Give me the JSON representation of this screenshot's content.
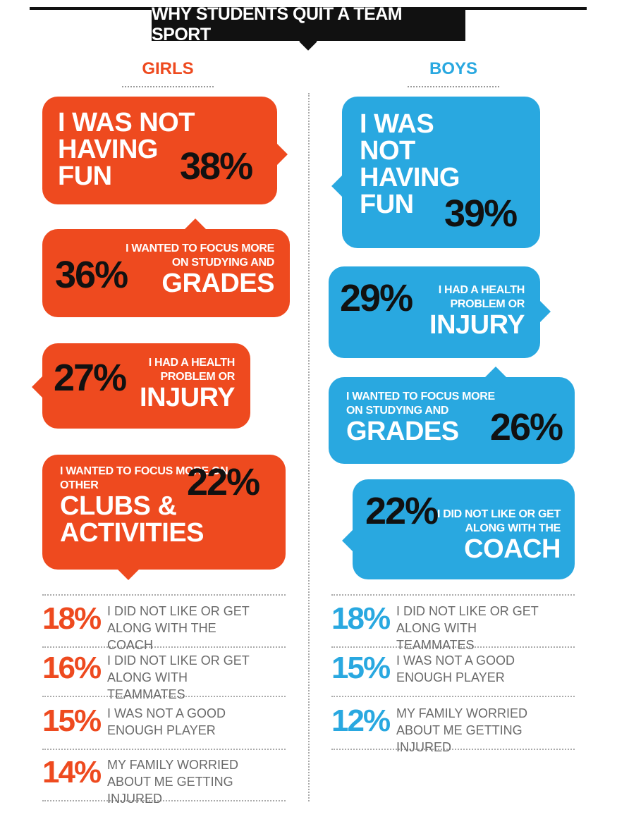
{
  "title": "WHY STUDENTS QUIT A TEAM SPORT",
  "girls": {
    "heading": "GIRLS",
    "bubbles": [
      {
        "big": "I WAS NOT HAVING FUN",
        "pct": "38%"
      },
      {
        "small": "I WANTED TO FOCUS MORE ON STUDYING AND",
        "big": "GRADES",
        "pct": "36%"
      },
      {
        "small": "I HAD A HEALTH PROBLEM OR",
        "big": "INJURY",
        "pct": "27%"
      },
      {
        "small": "I WANTED TO FOCUS MORE ON OTHER",
        "big": "CLUBS & ACTIVITIES",
        "pct": "22%"
      }
    ],
    "list": [
      {
        "pct": "18%",
        "text": "I DID NOT LIKE OR GET ALONG WITH THE COACH"
      },
      {
        "pct": "16%",
        "text": "I DID NOT LIKE OR GET ALONG WITH TEAMMATES"
      },
      {
        "pct": "15%",
        "text": "I WAS NOT A GOOD ENOUGH PLAYER"
      },
      {
        "pct": "14%",
        "text": "MY FAMILY WORRIED ABOUT ME GETTING INJURED"
      }
    ]
  },
  "boys": {
    "heading": "BOYS",
    "bubbles": [
      {
        "big": "I WAS NOT HAVING FUN",
        "pct": "39%"
      },
      {
        "small": "I HAD A HEALTH PROBLEM OR",
        "big": "INJURY",
        "pct": "29%"
      },
      {
        "small": "I WANTED TO FOCUS MORE ON STUDYING AND",
        "big": "GRADES",
        "pct": "26%"
      },
      {
        "small": "I DID NOT LIKE OR GET ALONG WITH THE",
        "big": "COACH",
        "pct": "22%"
      }
    ],
    "list": [
      {
        "pct": "18%",
        "text": "I DID NOT LIKE OR GET ALONG WITH TEAMMATES"
      },
      {
        "pct": "15%",
        "text": "I WAS NOT A GOOD ENOUGH PLAYER"
      },
      {
        "pct": "12%",
        "text": "MY FAMILY WORRIED ABOUT ME GETTING INJURED"
      }
    ]
  }
}
